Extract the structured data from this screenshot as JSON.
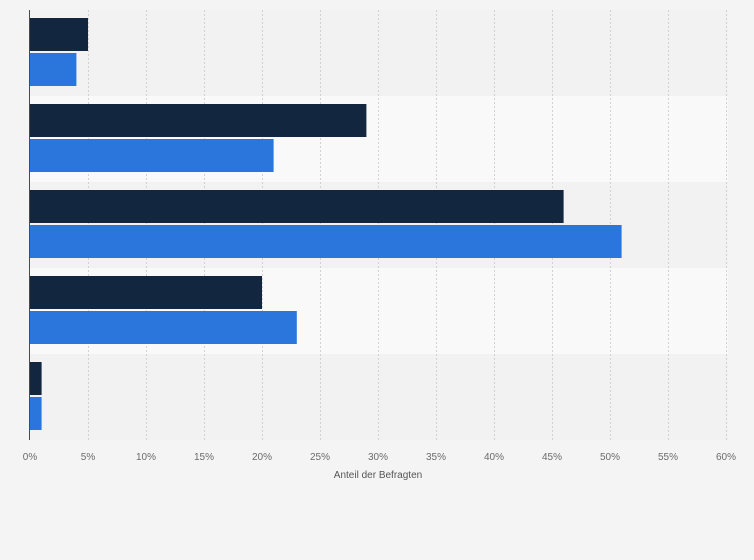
{
  "chart_data": {
    "type": "bar",
    "orientation": "horizontal",
    "categories": [
      "",
      "",
      "",
      "",
      ""
    ],
    "series": [
      {
        "color": "#12263f",
        "values": [
          5,
          29,
          46,
          20,
          1
        ]
      },
      {
        "color": "#2a76dd",
        "values": [
          4,
          21,
          51,
          23,
          1
        ]
      }
    ],
    "xlim": [
      0,
      60
    ],
    "x_ticks": [
      "0%",
      "5%",
      "10%",
      "15%",
      "20%",
      "25%",
      "30%",
      "35%",
      "40%",
      "45%",
      "50%",
      "55%",
      "60%"
    ],
    "xlabel": "Anteil der Befragten",
    "grid": true,
    "band_colors": [
      "#f2f2f2",
      "#f9f9f9"
    ]
  }
}
